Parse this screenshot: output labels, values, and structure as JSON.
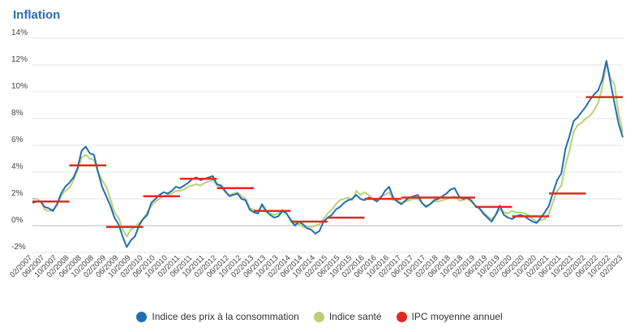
{
  "title": "Inflation",
  "chart_data": {
    "type": "line",
    "title": "Inflation",
    "ylim": [
      -2,
      14
    ],
    "yticks": [
      -2,
      0,
      2,
      4,
      6,
      8,
      10,
      12,
      14
    ],
    "yticklabels": [
      "-2%",
      "0%",
      "2%",
      "4%",
      "6%",
      "8%",
      "10%",
      "12%",
      "14%"
    ],
    "xticklabels": [
      "02/2007",
      "06/2007",
      "10/2007",
      "02/2008",
      "06/2008",
      "10/2008",
      "02/2009",
      "06/2009",
      "10/2009",
      "02/2010",
      "06/2010",
      "10/2010",
      "02/2011",
      "06/2011",
      "10/2011",
      "02/2012",
      "06/2012",
      "10/2012",
      "02/2013",
      "06/2013",
      "10/2013",
      "02/2014",
      "06/2014",
      "10/2014",
      "02/2015",
      "06/2015",
      "10/2015",
      "02/2016",
      "06/2016",
      "10/2016",
      "02/2017",
      "06/2017",
      "10/2017",
      "02/2018",
      "06/2018",
      "10/2018",
      "02/2019",
      "06/2019",
      "10/2019",
      "02/2020",
      "06/2020",
      "10/2020",
      "02/2021",
      "06/2021",
      "10/2021",
      "02/2022",
      "06/2022",
      "10/2022",
      "02/2023"
    ],
    "grid": true,
    "legend_position": "bottom",
    "series": [
      {
        "name": "Indice des prix à la consommation",
        "color": "#1f6fb2",
        "values": [
          1.7,
          1.8,
          1.8,
          1.4,
          1.3,
          1.1,
          1.6,
          2.4,
          2.9,
          3.2,
          3.6,
          4.3,
          5.6,
          5.9,
          5.4,
          5.3,
          4.0,
          2.9,
          2.2,
          1.5,
          0.6,
          0.1,
          -0.8,
          -1.6,
          -1.1,
          -0.8,
          0.0,
          0.5,
          0.8,
          1.7,
          2.0,
          2.3,
          2.5,
          2.4,
          2.6,
          2.9,
          2.8,
          3.0,
          3.2,
          3.5,
          3.6,
          3.4,
          3.5,
          3.6,
          3.7,
          3.1,
          3.0,
          2.6,
          2.2,
          2.3,
          2.4,
          2.0,
          1.9,
          1.2,
          1.0,
          0.9,
          1.6,
          1.1,
          0.8,
          0.6,
          0.7,
          1.1,
          0.9,
          0.4,
          0.0,
          0.3,
          0.1,
          -0.2,
          -0.3,
          -0.6,
          -0.4,
          0.3,
          0.6,
          0.8,
          1.2,
          1.4,
          1.7,
          1.9,
          2.0,
          2.3,
          2.0,
          1.9,
          2.1,
          2.0,
          1.8,
          2.1,
          2.6,
          2.9,
          2.1,
          1.8,
          1.6,
          1.9,
          2.1,
          2.2,
          2.3,
          1.7,
          1.4,
          1.6,
          1.9,
          2.0,
          2.2,
          2.4,
          2.7,
          2.8,
          2.2,
          2.0,
          2.1,
          1.9,
          1.5,
          1.3,
          0.9,
          0.6,
          0.3,
          0.8,
          1.5,
          0.8,
          0.6,
          0.5,
          0.7,
          0.8,
          0.7,
          0.5,
          0.3,
          0.2,
          0.6,
          1.0,
          1.5,
          2.5,
          3.4,
          3.9,
          5.7,
          6.7,
          7.8,
          8.1,
          8.5,
          8.9,
          9.4,
          9.8,
          10.1,
          10.9,
          12.3,
          10.7,
          9.1,
          7.6,
          6.6
        ],
        "annual_source": true
      },
      {
        "name": "Indice santé",
        "color": "#bccf77",
        "values": [
          2.0,
          2.0,
          1.8,
          1.2,
          1.1,
          1.2,
          1.5,
          2.2,
          2.6,
          2.8,
          3.4,
          4.1,
          5.1,
          5.3,
          5.0,
          4.9,
          4.0,
          3.4,
          2.9,
          2.0,
          1.0,
          0.6,
          -0.3,
          -0.8,
          -0.3,
          -0.1,
          0.2,
          0.5,
          1.0,
          1.5,
          1.8,
          2.0,
          2.2,
          2.3,
          2.4,
          2.6,
          2.6,
          2.7,
          2.9,
          3.0,
          3.1,
          3.0,
          3.2,
          3.3,
          3.4,
          3.0,
          2.9,
          2.5,
          2.3,
          2.4,
          2.5,
          2.2,
          2.0,
          1.3,
          1.2,
          1.1,
          1.5,
          1.0,
          0.9,
          0.8,
          0.9,
          1.2,
          0.9,
          0.5,
          0.2,
          0.1,
          -0.1,
          -0.1,
          -0.1,
          0.0,
          0.1,
          0.5,
          0.9,
          1.2,
          1.6,
          1.9,
          2.0,
          2.1,
          1.9,
          2.6,
          2.3,
          2.5,
          2.3,
          2.0,
          1.9,
          2.2,
          2.3,
          2.5,
          1.9,
          1.9,
          1.7,
          1.8,
          1.9,
          2.0,
          2.0,
          1.7,
          1.5,
          1.6,
          1.8,
          1.8,
          1.9,
          2.0,
          2.1,
          2.2,
          1.9,
          1.9,
          2.0,
          1.8,
          1.5,
          1.3,
          1.0,
          0.7,
          0.5,
          0.8,
          1.2,
          1.0,
          0.9,
          1.1,
          1.0,
          1.0,
          0.9,
          0.8,
          0.5,
          0.3,
          0.4,
          0.5,
          0.9,
          1.8,
          2.6,
          3.0,
          4.5,
          5.6,
          7.0,
          7.5,
          7.7,
          8.0,
          8.2,
          8.6,
          9.2,
          10.3,
          12.2,
          11.0,
          10.5,
          8.3,
          7.0
        ]
      }
    ],
    "annual_average": {
      "name": "IPC moyenne annuel",
      "color": "#e02a23",
      "values": [
        1.8,
        4.5,
        -0.1,
        2.2,
        3.5,
        2.8,
        1.1,
        0.3,
        0.6,
        2.0,
        2.1,
        2.1,
        1.4,
        0.7,
        2.4,
        9.6
      ]
    }
  },
  "legend": [
    {
      "label": "Indice des prix à la consommation",
      "color": "#1f6fb2"
    },
    {
      "label": "Indice santé",
      "color": "#bccf77"
    },
    {
      "label": "IPC moyenne annuel",
      "color": "#e02a23"
    }
  ]
}
